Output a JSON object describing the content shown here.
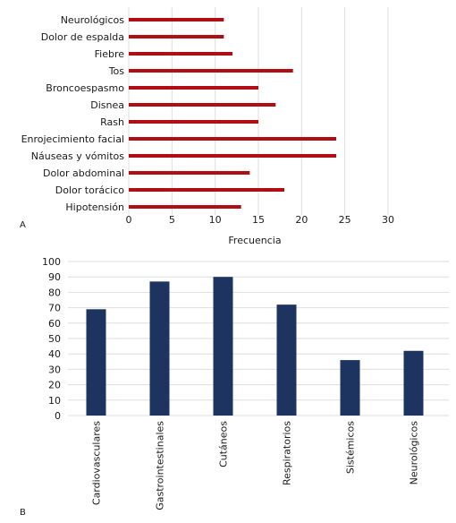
{
  "panels": [
    {
      "panel_label": "A",
      "colors": {
        "bar": "#b00d14",
        "grid": "#dedede"
      }
    },
    {
      "panel_label": "B",
      "colors": {
        "bar": "#1d3461",
        "grid": "#dedede"
      }
    }
  ],
  "chart_data": [
    {
      "type": "bar",
      "orientation": "horizontal",
      "categories": [
        "Neurológicos",
        "Dolor de espalda",
        "Fiebre",
        "Tos",
        "Broncoespasmo",
        "Disnea",
        "Rash",
        "Enrojecimiento facial",
        "Náuseas y vómitos",
        "Dolor abdominal",
        "Dolor torácico",
        "Hipotensión"
      ],
      "values": [
        11,
        11,
        12,
        19,
        15,
        17,
        15,
        24,
        24,
        14,
        18,
        13
      ],
      "xlabel": "Frecuencia",
      "ylabel": "",
      "xlim": [
        0,
        30
      ],
      "xticks": [
        "0",
        "5",
        "10",
        "15",
        "20",
        "25",
        "30"
      ],
      "grid": "vertical",
      "legend": "none"
    },
    {
      "type": "bar",
      "orientation": "vertical",
      "categories": [
        "Cardiovasculares",
        "Gastrointestinales",
        "Cutáneos",
        "Respiratorios",
        "Sistémicos",
        "Neurológicos"
      ],
      "values": [
        69,
        87,
        90,
        72,
        36,
        42
      ],
      "xlabel": "",
      "ylabel": "",
      "ylim": [
        0,
        100
      ],
      "yticks": [
        "0",
        "10",
        "20",
        "30",
        "40",
        "50",
        "60",
        "70",
        "80",
        "90",
        "100"
      ],
      "grid": "horizontal",
      "legend": "none"
    }
  ]
}
